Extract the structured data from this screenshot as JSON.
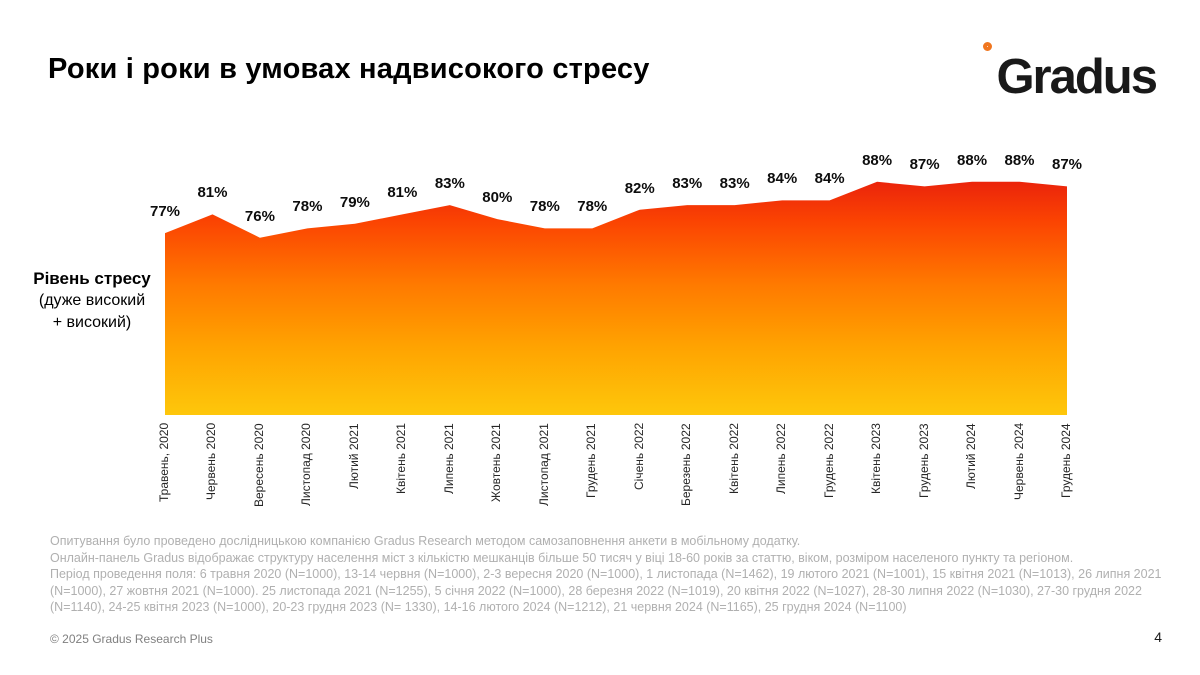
{
  "slide": {
    "title": "Роки і роки в умовах надвисокого стресу",
    "logo_text": "Gradus",
    "copyright": "© 2025 Gradus Research Plus",
    "page_number": "4"
  },
  "y_label": {
    "line1": "Рівень стресу",
    "line2": "(дуже високий",
    "line3": "+ високий)"
  },
  "chart_data": {
    "type": "area",
    "title": "Рівень стресу (дуже високий + високий)",
    "unit": "%",
    "categories": [
      "Травень, 2020",
      "Червень 2020",
      "Вересень 2020",
      "Листопад 2020",
      "Лютий 2021",
      "Квітень 2021",
      "Липень 2021",
      "Жовтень 2021",
      "Листопад 2021",
      "Грудень 2021",
      "Січень 2022",
      "Березень 2022",
      "Квітень 2022",
      "Липень 2022",
      "Грудень 2022",
      "Квітень 2023",
      "Грудень 2023",
      "Лютий 2024",
      "Червень 2024",
      "Грудень 2024"
    ],
    "values": [
      77,
      81,
      76,
      78,
      79,
      81,
      83,
      80,
      78,
      78,
      82,
      83,
      83,
      84,
      84,
      88,
      87,
      88,
      88,
      87
    ],
    "data_label_format": "{v}%",
    "ylim_implied": [
      38,
      90
    ],
    "grid": false,
    "legend": false,
    "x_tick_rotation": 90,
    "gradient_colors": [
      "#E9210C",
      "#FB4302",
      "#FF7A00",
      "#FFA401",
      "#FEC70B"
    ]
  },
  "footnotes": {
    "lines": [
      "Опитування було проведено дослідницькою компанією Gradus Research методом самозаповнення анкети в мобільному додатку.",
      "Онлайн-панель Gradus відображає структуру населення міст з кількістю мешканців більше 50 тисяч у віці 18-60 років за статтю, віком, розміром населеного пункту та регіоном.",
      "Період проведення поля: 6 травня 2020 (N=1000), 13-14 червня (N=1000), 2-3 вересня 2020 (N=1000), 1 листопада (N=1462), 19 лютого 2021 (N=1001), 15 квітня 2021 (N=1013), 26 липня 2021",
      "(N=1000), 27 жовтня 2021 (N=1000). 25 листопада 2021 (N=1255), 5 січня 2022 (N=1000), 28 березня 2022 (N=1019), 20 квітня 2022 (N=1027), 28-30 липня 2022 (N=1030), 27-30 грудня 2022",
      "(N=1140), 24-25 квітня 2023 (N=1000), 20-23 грудня 2023 (N= 1330), 14-16 лютого 2024 (N=1212), 21 червня 2024 (N=1165), 25 грудня 2024 (N=1100)"
    ]
  }
}
